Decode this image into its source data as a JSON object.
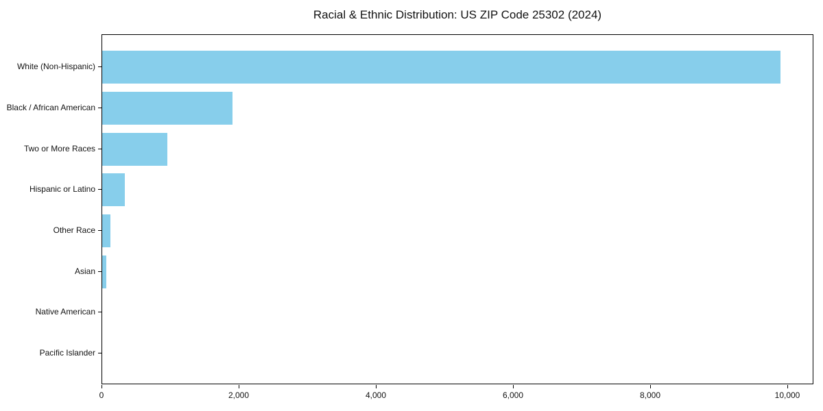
{
  "colors": {
    "bar": "#87CEEB",
    "spine": "#000000",
    "text": "#111111",
    "background": "#ffffff"
  },
  "chart_data": {
    "type": "bar",
    "orientation": "horizontal",
    "title": "Racial & Ethnic Distribution: US ZIP Code 25302 (2024)",
    "categories": [
      "White (Non-Hispanic)",
      "Black / African American",
      "Two or More Races",
      "Hispanic or Latino",
      "Other Race",
      "Asian",
      "Native American",
      "Pacific Islander"
    ],
    "values": [
      9890,
      1900,
      950,
      330,
      120,
      60,
      0,
      0
    ],
    "xlabel": "",
    "ylabel": "",
    "xlim": [
      0,
      10380
    ],
    "xticks": {
      "values": [
        0,
        2000,
        4000,
        6000,
        8000,
        10000
      ],
      "labels": [
        "0",
        "2,000",
        "4,000",
        "6,000",
        "8,000",
        "10,000"
      ]
    },
    "grid": false,
    "legend": null
  }
}
